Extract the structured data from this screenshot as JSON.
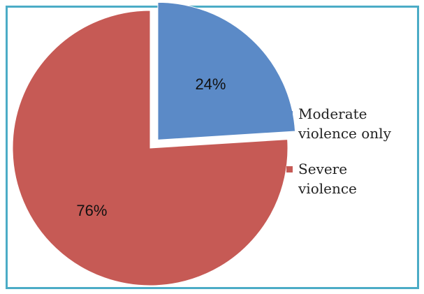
{
  "chart_data": {
    "type": "pie",
    "title": "",
    "series": [
      {
        "values": [
          24,
          76
        ]
      }
    ],
    "slices": [
      {
        "label": "24%",
        "legend": [
          "Moderate",
          "violence only"
        ],
        "value": 24,
        "color": "#5b8ac7",
        "exploded": true
      },
      {
        "label": "76%",
        "legend": [
          "Severe",
          "violence"
        ],
        "value": 76,
        "color": "#c65a55",
        "exploded": false
      }
    ],
    "legend_placement": "right",
    "start_angle_deg": 0,
    "direction": "clockwise"
  },
  "colors": {
    "frame": "#4bacc6",
    "background": "#ffffff"
  }
}
